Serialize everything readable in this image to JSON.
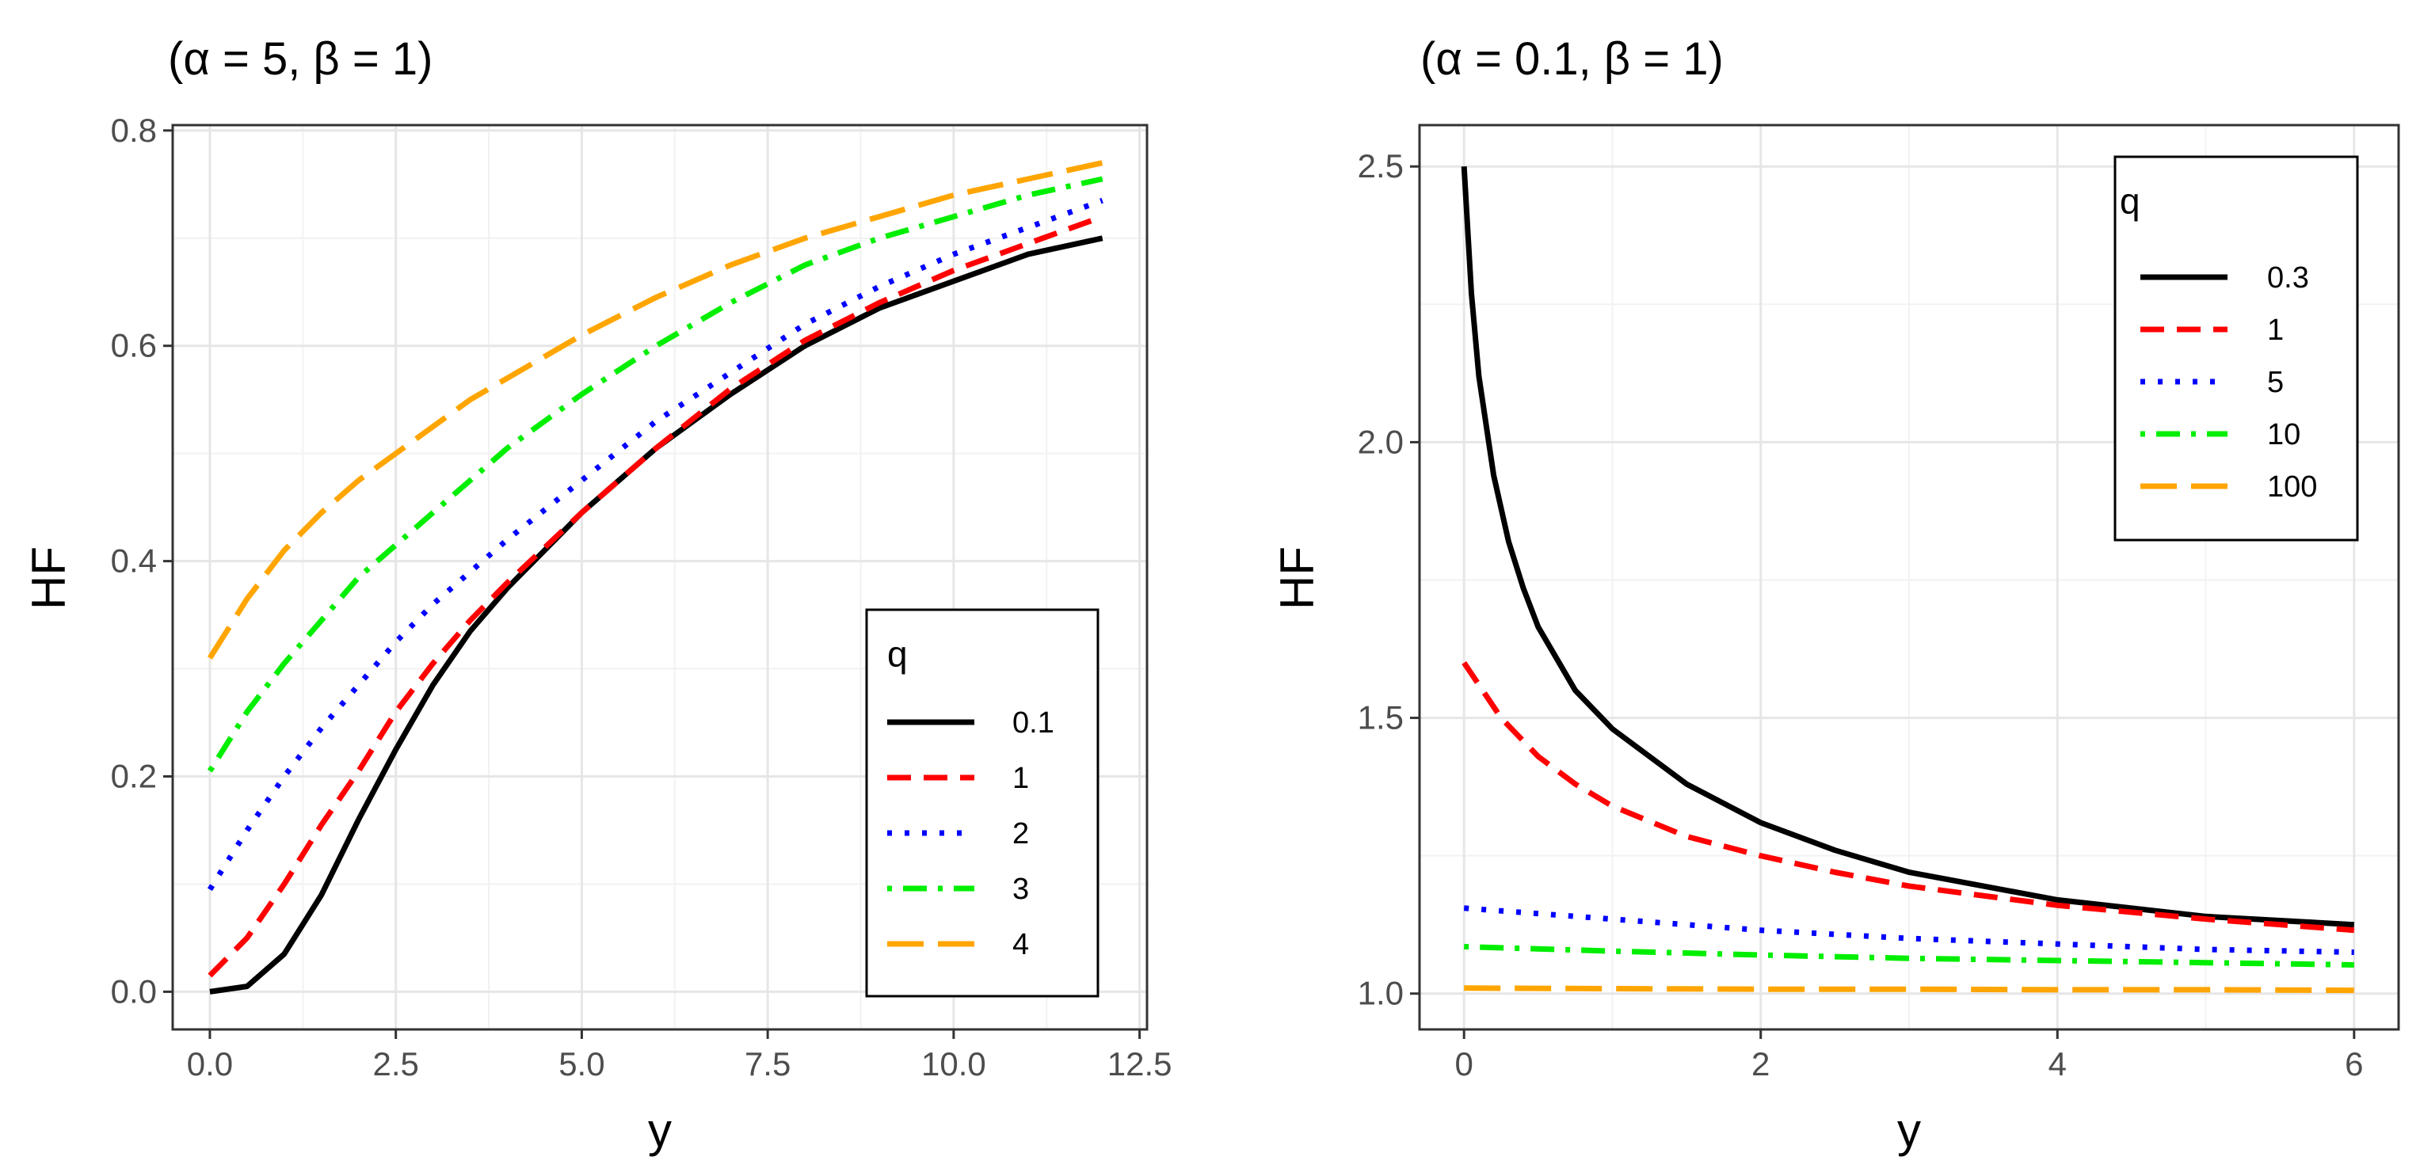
{
  "chart_data": [
    {
      "type": "line",
      "title": "(α = 5, β = 1)",
      "xlabel": "y",
      "ylabel": "HF",
      "xlim": [
        -0.5,
        12.6
      ],
      "ylim": [
        -0.035,
        0.805
      ],
      "xticks": [
        0,
        2.5,
        5,
        7.5,
        10,
        12.5
      ],
      "xtick_labels": [
        "0.0",
        "2.5",
        "5.0",
        "7.5",
        "10.0",
        "12.5"
      ],
      "yticks": [
        0,
        0.2,
        0.4,
        0.6,
        0.8
      ],
      "ytick_labels": [
        "0.0",
        "0.2",
        "0.4",
        "0.6",
        "0.8"
      ],
      "grid": true,
      "legend_title": "q",
      "legend_position": "bottom-right",
      "series": [
        {
          "name": "0.1",
          "color": "#000000",
          "dash": "solid",
          "x": [
            0,
            0.5,
            1,
            1.5,
            2,
            2.5,
            3,
            3.5,
            4,
            5,
            6,
            7,
            8,
            9,
            10,
            11,
            12
          ],
          "y": [
            0.0,
            0.005,
            0.035,
            0.09,
            0.16,
            0.225,
            0.285,
            0.335,
            0.375,
            0.445,
            0.505,
            0.555,
            0.6,
            0.635,
            0.66,
            0.685,
            0.7
          ]
        },
        {
          "name": "1",
          "color": "#ff0000",
          "dash": "dashed",
          "x": [
            0,
            0.5,
            1,
            1.5,
            2,
            2.5,
            3,
            3.5,
            4,
            5,
            6,
            7,
            8,
            9,
            10,
            11,
            12
          ],
          "y": [
            0.015,
            0.05,
            0.1,
            0.155,
            0.205,
            0.26,
            0.305,
            0.345,
            0.38,
            0.445,
            0.505,
            0.56,
            0.605,
            0.64,
            0.67,
            0.695,
            0.72
          ]
        },
        {
          "name": "2",
          "color": "#0000ff",
          "dash": "dotted",
          "x": [
            0,
            0.5,
            1,
            1.5,
            2,
            2.5,
            3,
            3.5,
            4,
            5,
            6,
            7,
            8,
            9,
            10,
            11,
            12
          ],
          "y": [
            0.095,
            0.15,
            0.2,
            0.245,
            0.285,
            0.325,
            0.36,
            0.39,
            0.42,
            0.475,
            0.53,
            0.575,
            0.62,
            0.655,
            0.685,
            0.71,
            0.735
          ]
        },
        {
          "name": "3",
          "color": "#00ee00",
          "dash": "dotdash",
          "x": [
            0,
            0.5,
            1,
            1.5,
            2,
            2.5,
            3,
            3.5,
            4,
            5,
            6,
            7,
            8,
            9,
            10,
            11,
            12
          ],
          "y": [
            0.205,
            0.26,
            0.305,
            0.345,
            0.385,
            0.415,
            0.445,
            0.475,
            0.505,
            0.555,
            0.6,
            0.64,
            0.675,
            0.7,
            0.72,
            0.74,
            0.755
          ]
        },
        {
          "name": "4",
          "color": "#ffa500",
          "dash": "longdash",
          "x": [
            0,
            0.5,
            1,
            1.5,
            2,
            2.5,
            3,
            3.5,
            4,
            5,
            6,
            7,
            8,
            9,
            10,
            11,
            12
          ],
          "y": [
            0.31,
            0.365,
            0.41,
            0.445,
            0.475,
            0.5,
            0.525,
            0.55,
            0.57,
            0.61,
            0.645,
            0.675,
            0.7,
            0.72,
            0.74,
            0.755,
            0.77
          ]
        }
      ]
    },
    {
      "type": "line",
      "title": "(α = 0.1, β = 1)",
      "xlabel": "y",
      "ylabel": "HF",
      "xlim": [
        -0.3,
        6.3
      ],
      "ylim": [
        0.935,
        2.575
      ],
      "xticks": [
        0,
        2,
        4,
        6
      ],
      "xtick_labels": [
        "0",
        "2",
        "4",
        "6"
      ],
      "yticks": [
        1.0,
        1.5,
        2.0,
        2.5
      ],
      "ytick_labels": [
        "1.0",
        "1.5",
        "2.0",
        "2.5"
      ],
      "grid": true,
      "legend_title": "q",
      "legend_position": "top-right",
      "series": [
        {
          "name": "0.3",
          "color": "#000000",
          "dash": "solid",
          "x": [
            0,
            0.05,
            0.1,
            0.2,
            0.3,
            0.4,
            0.5,
            0.75,
            1,
            1.5,
            2,
            2.5,
            3,
            4,
            5,
            6
          ],
          "y": [
            2.5,
            2.27,
            2.12,
            1.94,
            1.82,
            1.735,
            1.665,
            1.55,
            1.48,
            1.38,
            1.31,
            1.26,
            1.22,
            1.17,
            1.14,
            1.125
          ]
        },
        {
          "name": "1",
          "color": "#ff0000",
          "dash": "dashed",
          "x": [
            0,
            0.25,
            0.5,
            0.75,
            1,
            1.5,
            2,
            2.5,
            3,
            4,
            5,
            6
          ],
          "y": [
            1.6,
            1.5,
            1.43,
            1.38,
            1.34,
            1.285,
            1.25,
            1.22,
            1.195,
            1.16,
            1.135,
            1.115
          ]
        },
        {
          "name": "5",
          "color": "#0000ff",
          "dash": "dotted",
          "x": [
            0,
            1,
            2,
            3,
            4,
            5,
            6
          ],
          "y": [
            1.155,
            1.135,
            1.115,
            1.1,
            1.09,
            1.08,
            1.075
          ]
        },
        {
          "name": "10",
          "color": "#00ee00",
          "dash": "dotdash",
          "x": [
            0,
            1,
            2,
            3,
            4,
            5,
            6
          ],
          "y": [
            1.085,
            1.077,
            1.07,
            1.064,
            1.06,
            1.056,
            1.052
          ]
        },
        {
          "name": "100",
          "color": "#ffa500",
          "dash": "longdash",
          "x": [
            0,
            1,
            2,
            3,
            4,
            5,
            6
          ],
          "y": [
            1.01,
            1.009,
            1.008,
            1.008,
            1.007,
            1.007,
            1.006
          ]
        }
      ]
    }
  ]
}
